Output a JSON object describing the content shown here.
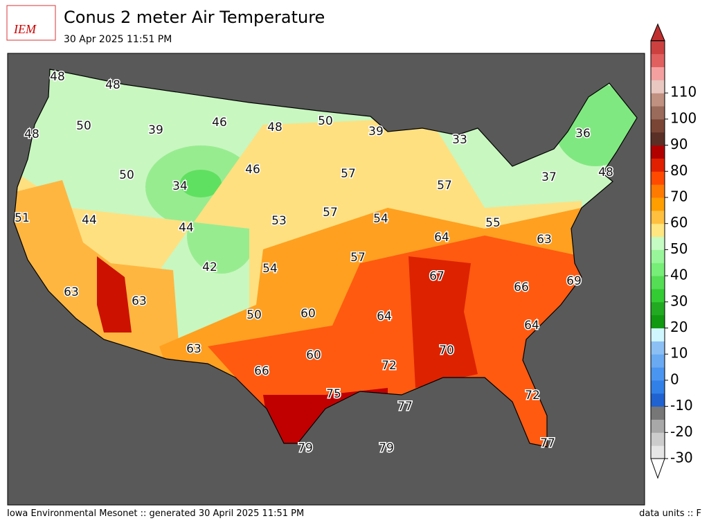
{
  "header": {
    "logo": "IEM",
    "title": "Conus 2 meter Air Temperature",
    "subtitle": "30 Apr 2025 11:51 PM"
  },
  "stations": [
    48,
    48,
    50,
    39,
    46,
    48,
    50,
    39,
    33,
    36,
    48,
    50,
    34,
    46,
    57,
    57,
    37,
    48,
    51,
    44,
    44,
    53,
    57,
    54,
    55,
    64,
    63,
    57,
    42,
    54,
    67,
    66,
    69,
    63,
    63,
    50,
    60,
    64,
    64,
    70,
    72,
    63,
    60,
    66,
    75,
    77,
    72,
    77,
    79,
    79
  ],
  "colorbar": {
    "ticks": [
      -30,
      -20,
      -10,
      0,
      10,
      20,
      30,
      40,
      50,
      60,
      70,
      80,
      90,
      100,
      110
    ]
  },
  "footer": {
    "left": "Iowa Environmental Mesonet :: generated 30 April 2025 11:51 PM",
    "right": "data units :: F"
  }
}
